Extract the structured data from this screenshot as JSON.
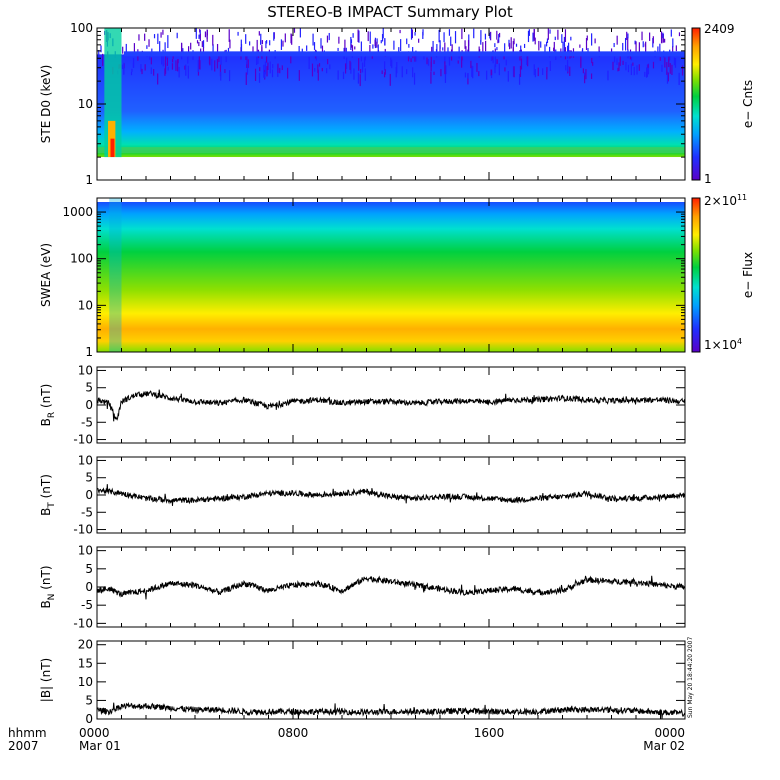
{
  "title": "STEREO-B IMPACT Summary Plot",
  "footer": {
    "row1": "hhmm",
    "row2": "2007",
    "ticks": [
      {
        "hhmm": "0000",
        "date": "Mar 01"
      },
      {
        "hhmm": "0800",
        "date": ""
      },
      {
        "hhmm": "1600",
        "date": ""
      },
      {
        "hhmm": "0000",
        "date": "Mar 02"
      }
    ]
  },
  "timestamp": "Sun May 20 18:44:20 2007",
  "colors": {
    "colormap": [
      "#5a00c8",
      "#2030ff",
      "#00a0ff",
      "#00e0d0",
      "#00d040",
      "#80e000",
      "#ffee00",
      "#ffa000",
      "#ff2000"
    ],
    "line": "#000000"
  },
  "chart_data": [
    {
      "type": "heatmap",
      "ylabel": "STE D0 (keV)",
      "ylim": [
        1,
        100
      ],
      "ylog": true,
      "yticks": [
        "1",
        "10",
        "100"
      ],
      "colorbar": {
        "label": "e− Cnts",
        "max": "2409",
        "min": "1"
      },
      "x": {
        "start": "2007-03-01 00:00",
        "end": "2007-03-02 00:00"
      }
    },
    {
      "type": "heatmap",
      "ylabel": "SWEA (eV)",
      "ylim": [
        1,
        2000
      ],
      "ylog": true,
      "yticks": [
        "1",
        "10",
        "100",
        "1000"
      ],
      "colorbar": {
        "label": "e− Flux",
        "max_base": "2×10",
        "max_exp": "11",
        "min_base": "1×10",
        "min_exp": "4"
      },
      "x": {
        "start": "2007-03-01 00:00",
        "end": "2007-03-02 00:00"
      }
    },
    {
      "type": "line",
      "ylabel_base": "B",
      "ylabel_sub": "R",
      "ylabel_unit": " (nT)",
      "ylim": [
        -11,
        11
      ],
      "yticks": [
        "-10",
        "-5",
        "0",
        "5",
        "10"
      ],
      "series": [
        {
          "x_hours": [
            0,
            0.5,
            0.8,
            1.0,
            1.3,
            1.6,
            2.2,
            3,
            4,
            5,
            6,
            7,
            8,
            9,
            10,
            11,
            12,
            13,
            14,
            15,
            16,
            17,
            18,
            19,
            20,
            21,
            22,
            23,
            24
          ],
          "y": [
            1.5,
            0.5,
            -4.5,
            1.0,
            2.0,
            3.0,
            3.3,
            2.0,
            1.0,
            0.5,
            1.5,
            -0.5,
            1.0,
            1.5,
            0.5,
            1.0,
            1.0,
            0.5,
            1.0,
            1.2,
            0.8,
            1.5,
            1.5,
            2.0,
            1.5,
            1.2,
            1.5,
            1.5,
            1.0
          ]
        }
      ]
    },
    {
      "type": "line",
      "ylabel_base": "B",
      "ylabel_sub": "T",
      "ylabel_unit": " (nT)",
      "ylim": [
        -11,
        11
      ],
      "yticks": [
        "-10",
        "-5",
        "0",
        "5",
        "10"
      ],
      "series": [
        {
          "x_hours": [
            0,
            0.5,
            1,
            2,
            3,
            4,
            5,
            6,
            7,
            8,
            9,
            10,
            11,
            12,
            13,
            14,
            15,
            16,
            17,
            18,
            19,
            20,
            21,
            22,
            23,
            24
          ],
          "y": [
            1.5,
            1.0,
            0.5,
            -1.0,
            -1.5,
            -1.5,
            -1.0,
            -0.5,
            0.5,
            0.5,
            0.0,
            0.5,
            1.0,
            -0.5,
            -1.0,
            -0.5,
            -0.5,
            -1.0,
            -1.5,
            -1.0,
            -0.5,
            0.5,
            -1.0,
            -1.0,
            -0.5,
            0.0
          ]
        }
      ]
    },
    {
      "type": "line",
      "ylabel_base": "B",
      "ylabel_sub": "N",
      "ylabel_unit": " (nT)",
      "ylim": [
        -11,
        11
      ],
      "yticks": [
        "-10",
        "-5",
        "0",
        "5",
        "10"
      ],
      "series": [
        {
          "x_hours": [
            0,
            0.5,
            1,
            2,
            3,
            4,
            5,
            6,
            7,
            8,
            9,
            10,
            11,
            12,
            13,
            14,
            15,
            16,
            17,
            18,
            19,
            20,
            21,
            22,
            23,
            24
          ],
          "y": [
            -1.0,
            -0.5,
            -2.0,
            -1.0,
            1.0,
            0.5,
            -1.5,
            1.0,
            -1.0,
            0.5,
            1.0,
            -1.0,
            2.5,
            1.5,
            0.5,
            -0.5,
            -1.5,
            -1.0,
            -0.5,
            -1.5,
            -1.0,
            2.0,
            1.5,
            1.5,
            0.5,
            0.0
          ]
        }
      ]
    },
    {
      "type": "line",
      "ylabel": "|B| (nT)",
      "ylim": [
        0,
        21
      ],
      "yticks": [
        "0",
        "5",
        "10",
        "15",
        "20"
      ],
      "series": [
        {
          "x_hours": [
            0,
            0.5,
            1,
            2,
            3,
            4,
            5,
            6,
            7,
            8,
            9,
            10,
            11,
            12,
            13,
            14,
            15,
            16,
            17,
            18,
            19,
            20,
            21,
            22,
            23,
            24
          ],
          "y": [
            2.5,
            2.0,
            3.5,
            3.5,
            3.0,
            2.5,
            2.5,
            2.0,
            2.0,
            2.0,
            2.0,
            2.0,
            1.8,
            2.0,
            2.0,
            2.0,
            2.2,
            2.0,
            2.0,
            2.0,
            2.5,
            2.5,
            2.5,
            2.2,
            1.8,
            1.5
          ]
        }
      ]
    }
  ]
}
